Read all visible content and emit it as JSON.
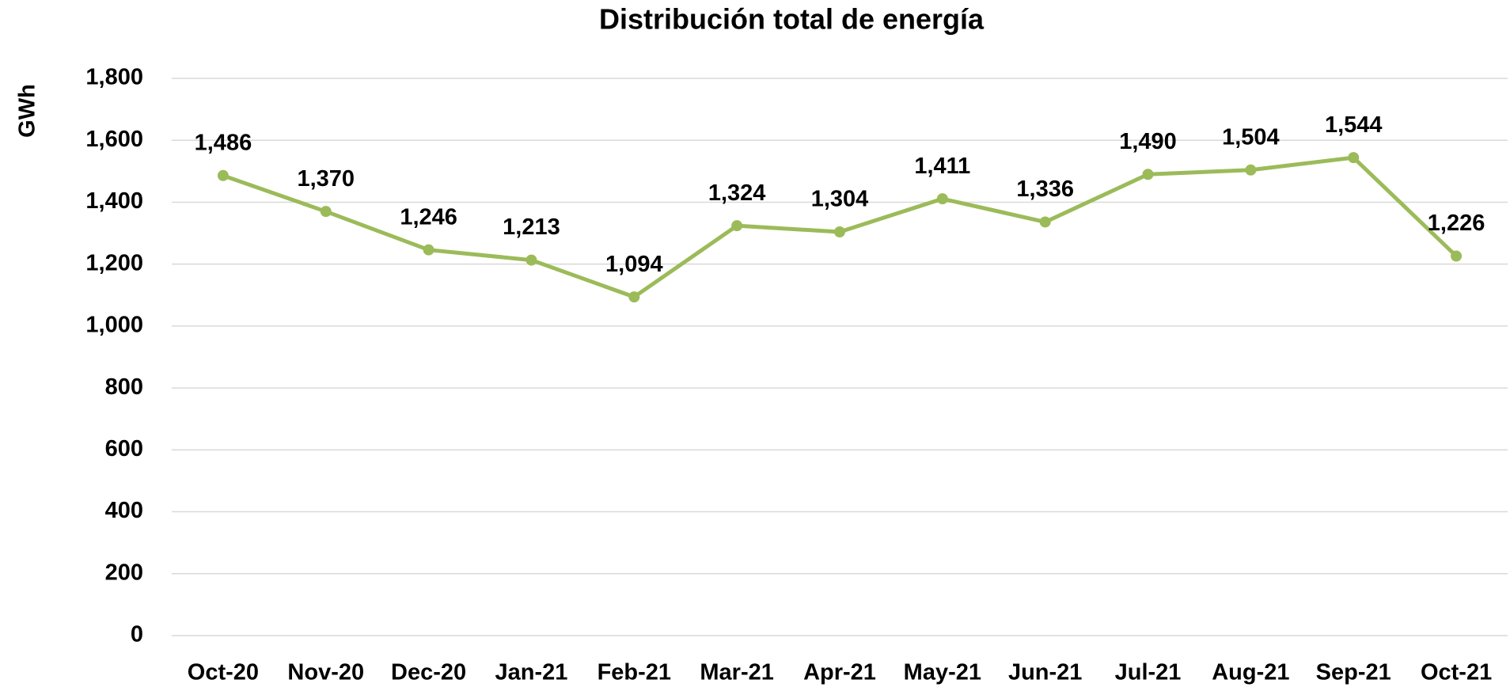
{
  "chart_data": {
    "type": "line",
    "title": "Distribución total de energía",
    "y_label": "GWh",
    "categories": [
      "Oct-20",
      "Nov-20",
      "Dec-20",
      "Jan-21",
      "Feb-21",
      "Mar-21",
      "Apr-21",
      "May-21",
      "Jun-21",
      "Jul-21",
      "Aug-21",
      "Sep-21",
      "Oct-21"
    ],
    "values": [
      1486,
      1370,
      1246,
      1213,
      1094,
      1324,
      1304,
      1411,
      1336,
      1490,
      1504,
      1544,
      1226
    ],
    "value_labels": [
      "1,486",
      "1,370",
      "1,246",
      "1,213",
      "1,094",
      "1,324",
      "1,304",
      "1,411",
      "1,336",
      "1,490",
      "1,504",
      "1,544",
      "1,226"
    ],
    "color": "#9bbb59",
    "ylim": [
      0,
      1800
    ],
    "yticks": [
      0,
      200,
      400,
      600,
      800,
      {
        "value": 1000,
        "label": "1,000"
      },
      {
        "value": 1200,
        "label": "1,200"
      },
      {
        "value": 1400,
        "label": "1,400"
      },
      {
        "value": 1600,
        "label": "1,600"
      },
      {
        "value": 1800,
        "label": "1,800"
      }
    ],
    "grid": true
  }
}
